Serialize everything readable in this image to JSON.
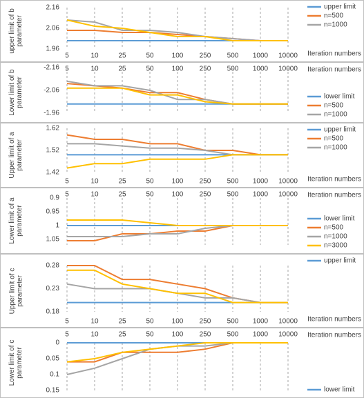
{
  "chart_data": [
    {
      "type": "line",
      "ylabel": "upper limit of b parameter",
      "xlabel": "Iteration numbers",
      "xaxis_position": "bottom",
      "legend": "top-right",
      "categories": [
        "5",
        "10",
        "25",
        "50",
        "100",
        "250",
        "500",
        "1000",
        "10000"
      ],
      "ylim": [
        1.96,
        2.16
      ],
      "yticks": [
        1.96,
        2.06,
        2.16
      ],
      "series": [
        {
          "name": "upper limit",
          "color": "#5b9bd5",
          "values": [
            2.0,
            2.0,
            2.0,
            2.0,
            2.0,
            2.0,
            2.0,
            2.0,
            2.0
          ]
        },
        {
          "name": "n=500",
          "color": "#ed7d31",
          "values": [
            2.05,
            2.05,
            2.04,
            2.04,
            2.03,
            2.02,
            2.01,
            2.0,
            2.0
          ]
        },
        {
          "name": "n=1000",
          "color": "#a5a5a5",
          "values": [
            2.1,
            2.09,
            2.05,
            2.05,
            2.04,
            2.02,
            2.01,
            2.0,
            2.0
          ]
        },
        {
          "color": "#ffc000",
          "values": [
            2.1,
            2.07,
            2.06,
            2.04,
            2.02,
            2.02,
            2.0,
            2.0,
            2.0
          ]
        }
      ]
    },
    {
      "type": "line",
      "ylabel": "Lower limit of b parameter",
      "xlabel": "Iteration numbers",
      "xaxis_position": "top",
      "legend": "bottom-right",
      "categories": [
        "5",
        "10",
        "25",
        "50",
        "100",
        "250",
        "500",
        "1000",
        "10000"
      ],
      "ylim": [
        -2.16,
        -1.96
      ],
      "yticks": [
        -1.96,
        -2.06,
        -2.16
      ],
      "series": [
        {
          "name": "lower limit",
          "color": "#5b9bd5",
          "values": [
            -2.0,
            -2.0,
            -2.0,
            -2.0,
            -2.0,
            -2.0,
            -2.0,
            -2.0,
            -2.0
          ]
        },
        {
          "name": "n=500",
          "color": "#ed7d31",
          "values": [
            -2.09,
            -2.08,
            -2.07,
            -2.05,
            -2.05,
            -2.02,
            -2.0,
            -2.0,
            -2.0
          ]
        },
        {
          "name": "n=1000",
          "color": "#a5a5a5",
          "values": [
            -2.1,
            -2.08,
            -2.08,
            -2.06,
            -2.02,
            -2.02,
            -2.0,
            -2.0,
            -2.0
          ]
        },
        {
          "color": "#ffc000",
          "values": [
            -2.07,
            -2.07,
            -2.07,
            -2.04,
            -2.04,
            -2.01,
            -2.0,
            -2.0,
            -2.0
          ]
        }
      ]
    },
    {
      "type": "line",
      "ylabel": "Upper limit of a parameter",
      "xlabel": "Iteration numbers",
      "xaxis_position": "bottom",
      "legend": "top-right",
      "categories": [
        "5",
        "10",
        "25",
        "50",
        "100",
        "250",
        "500",
        "1000",
        "10000"
      ],
      "ylim": [
        1.42,
        1.62
      ],
      "yticks": [
        1.42,
        1.52,
        1.62
      ],
      "series": [
        {
          "name": "upper limit",
          "color": "#5b9bd5",
          "values": [
            1.5,
            1.5,
            1.5,
            1.5,
            1.5,
            1.5,
            1.5,
            1.5,
            1.5
          ]
        },
        {
          "name": "n=500",
          "color": "#ed7d31",
          "values": [
            1.59,
            1.57,
            1.57,
            1.55,
            1.55,
            1.52,
            1.52,
            1.5,
            1.5
          ]
        },
        {
          "name": "n=1000",
          "color": "#a5a5a5",
          "values": [
            1.55,
            1.55,
            1.54,
            1.53,
            1.53,
            1.52,
            1.5,
            1.5,
            1.5
          ]
        },
        {
          "color": "#ffc000",
          "values": [
            1.44,
            1.46,
            1.46,
            1.48,
            1.48,
            1.48,
            1.5,
            1.5,
            1.5
          ]
        }
      ]
    },
    {
      "type": "line",
      "ylabel": "Lower limit of a parameter",
      "xlabel": "Iteration numbers",
      "xaxis_position": "top",
      "legend": "bottom-right",
      "categories": [
        "5",
        "10",
        "25",
        "50",
        "100",
        "250",
        "500",
        "1000",
        "10000"
      ],
      "ylim": [
        1.07,
        0.9
      ],
      "yticks": [
        0.9,
        0.95,
        1,
        1.05
      ],
      "series": [
        {
          "name": "lower limit",
          "color": "#5b9bd5",
          "values": [
            1,
            1,
            1,
            1,
            1,
            1,
            1,
            1,
            1
          ]
        },
        {
          "name": "n=500",
          "color": "#ed7d31",
          "values": [
            1.055,
            1.055,
            1.03,
            1.03,
            1.02,
            1.02,
            1,
            1,
            1
          ]
        },
        {
          "name": "n=1000",
          "color": "#a5a5a5",
          "values": [
            1.04,
            1.04,
            1.04,
            1.03,
            1.03,
            1.01,
            1,
            1,
            1
          ]
        },
        {
          "name": "n=3000",
          "color": "#ffc000",
          "values": [
            0.98,
            0.98,
            0.98,
            0.99,
            1,
            1,
            1,
            1,
            1
          ]
        }
      ]
    },
    {
      "type": "line",
      "ylabel": "Upper limit of c parameter",
      "xlabel": "Iteration numbers",
      "xaxis_position": "bottom",
      "legend": "top-right",
      "categories": [
        "5",
        "10",
        "25",
        "50",
        "100",
        "250",
        "500",
        "1000",
        "10000"
      ],
      "ylim": [
        0.18,
        0.28
      ],
      "yticks": [
        0.18,
        0.23,
        0.28
      ],
      "series": [
        {
          "name": "upper limit",
          "color": "#5b9bd5",
          "values": [
            0.2,
            0.2,
            0.2,
            0.2,
            0.2,
            0.2,
            0.2,
            0.2,
            0.2
          ]
        },
        {
          "color": "#ed7d31",
          "values": [
            0.28,
            0.28,
            0.25,
            0.25,
            0.24,
            0.23,
            0.21,
            0.2,
            0.2
          ]
        },
        {
          "color": "#a5a5a5",
          "values": [
            0.24,
            0.23,
            0.23,
            0.23,
            0.22,
            0.21,
            0.21,
            0.2,
            0.2
          ]
        },
        {
          "color": "#ffc000",
          "values": [
            0.27,
            0.27,
            0.24,
            0.23,
            0.22,
            0.22,
            0.2,
            0.2,
            0.2
          ]
        }
      ]
    },
    {
      "type": "line",
      "ylabel": "Lower limit of c parameter",
      "xlabel": "Iteration numbers",
      "xaxis_position": "top",
      "legend": "bottom-right",
      "categories": [
        "5",
        "10",
        "25",
        "50",
        "100",
        "250",
        "500",
        "1000",
        "10000"
      ],
      "ylim": [
        0.15,
        0
      ],
      "yticks": [
        0,
        0.05,
        0.1,
        0.15
      ],
      "series": [
        {
          "name": "lower limit",
          "color": "#5b9bd5",
          "values": [
            0,
            0,
            0,
            0,
            0,
            0,
            0,
            0,
            0
          ]
        },
        {
          "color": "#ed7d31",
          "values": [
            0.06,
            0.06,
            0.03,
            0.03,
            0.03,
            0.02,
            0,
            0,
            0
          ]
        },
        {
          "color": "#a5a5a5",
          "values": [
            0.1,
            0.08,
            0.05,
            0.02,
            0.01,
            0.01,
            0,
            0,
            0
          ]
        },
        {
          "color": "#ffc000",
          "values": [
            0.06,
            0.05,
            0.03,
            0.02,
            0.01,
            0,
            0,
            0,
            0
          ]
        }
      ]
    }
  ]
}
